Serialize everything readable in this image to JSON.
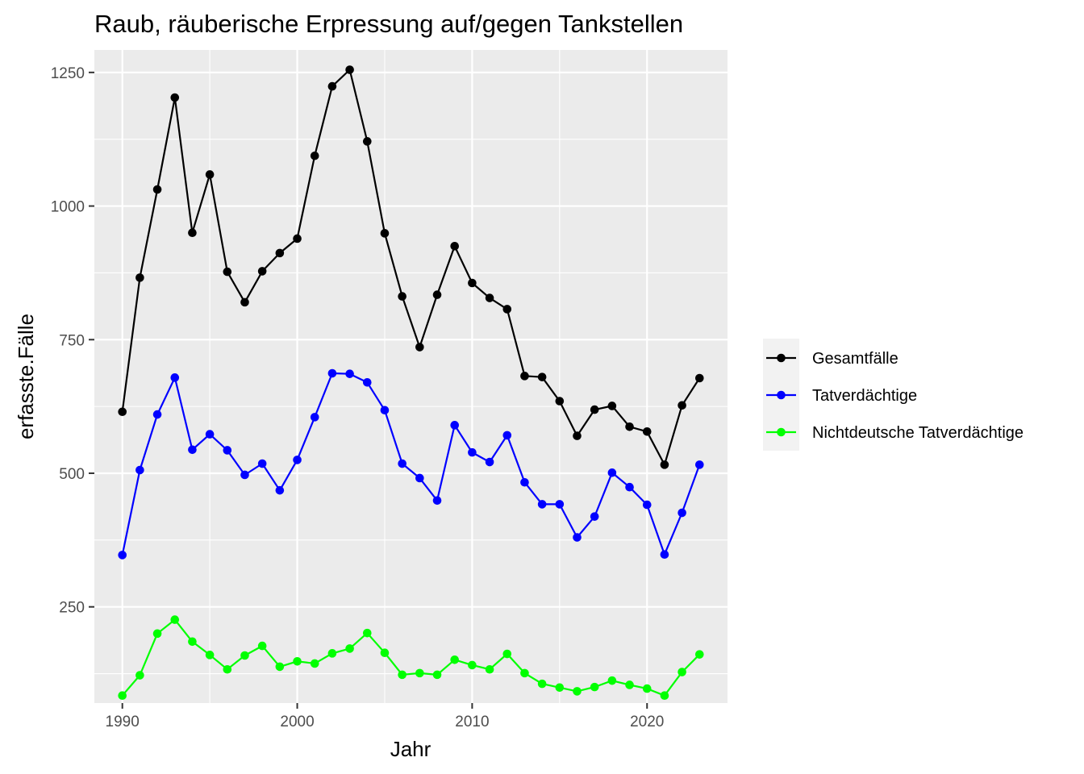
{
  "chart_data": {
    "type": "line",
    "title": "Raub, räuberische Erpressung auf/gegen Tankstellen",
    "xlabel": "Jahr",
    "ylabel": "erfasste.Fälle",
    "xlim": [
      1988.4,
      2024.6
    ],
    "ylim": [
      70,
      1292
    ],
    "x_ticks": [
      1990,
      2000,
      2010,
      2020
    ],
    "x_minor_ticks": [
      1995,
      2005,
      2015
    ],
    "y_ticks": [
      250,
      500,
      750,
      1000,
      1250
    ],
    "y_minor_ticks": [
      125,
      375,
      625,
      875,
      1125
    ],
    "grid": true,
    "legend_position": "right",
    "x": [
      1990,
      1991,
      1992,
      1993,
      1994,
      1995,
      1996,
      1997,
      1998,
      1999,
      2000,
      2001,
      2002,
      2003,
      2004,
      2005,
      2006,
      2007,
      2008,
      2009,
      2010,
      2011,
      2012,
      2013,
      2014,
      2015,
      2016,
      2017,
      2018,
      2019,
      2020,
      2021,
      2022,
      2023
    ],
    "series": [
      {
        "name": "Gesamtfälle",
        "color": "#000000",
        "values": [
          615,
          866,
          1031,
          1203,
          950,
          1059,
          877,
          820,
          878,
          912,
          939,
          1094,
          1224,
          1255,
          1121,
          949,
          831,
          736,
          834,
          925,
          856,
          828,
          807,
          682,
          680,
          635,
          570,
          619,
          626,
          587,
          578,
          516,
          627,
          678
        ]
      },
      {
        "name": "Tatverdächtige",
        "color": "#0000ff",
        "values": [
          347,
          506,
          610,
          679,
          544,
          573,
          543,
          497,
          518,
          468,
          525,
          605,
          687,
          686,
          670,
          618,
          518,
          491,
          449,
          590,
          539,
          521,
          571,
          483,
          442,
          442,
          380,
          419,
          501,
          474,
          441,
          348,
          426,
          516
        ]
      },
      {
        "name": "Nichtdeutsche Tatverdächtige",
        "color": "#00ff00",
        "values": [
          84,
          122,
          200,
          226,
          185,
          160,
          133,
          159,
          177,
          138,
          148,
          144,
          163,
          172,
          201,
          164,
          123,
          126,
          123,
          151,
          141,
          133,
          162,
          126,
          106,
          99,
          92,
          100,
          112,
          104,
          97,
          84,
          128,
          161
        ]
      }
    ]
  }
}
